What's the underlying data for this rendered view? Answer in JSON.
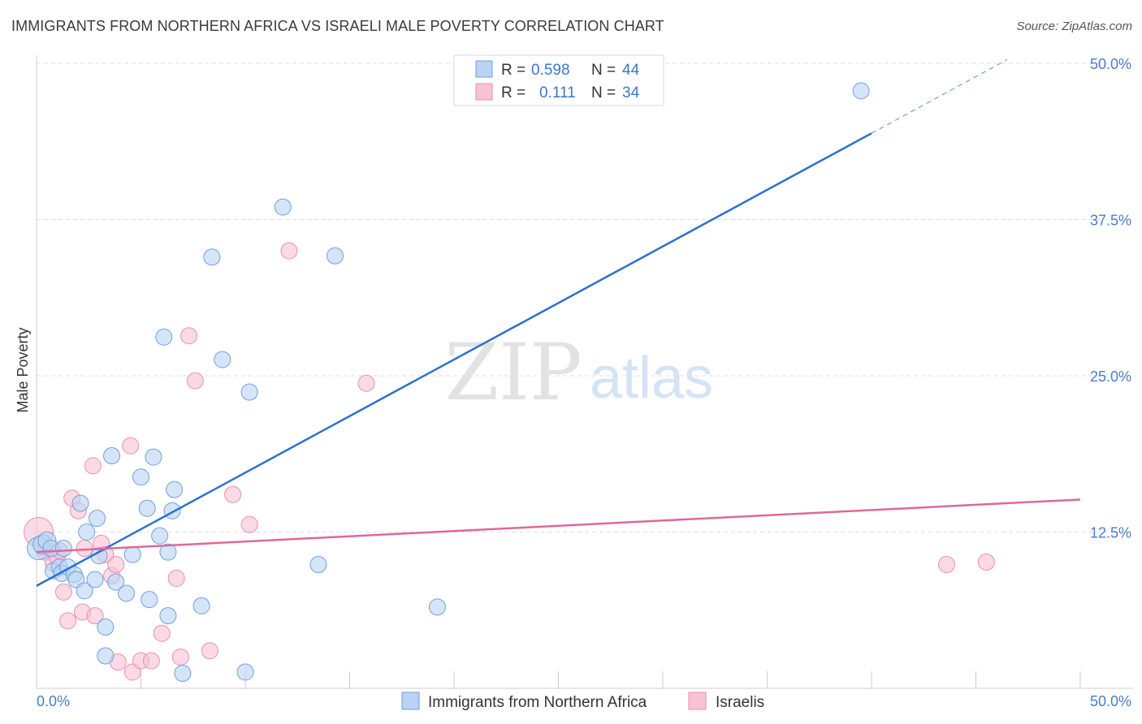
{
  "header": {
    "title": "IMMIGRANTS FROM NORTHERN AFRICA VS ISRAELI MALE POVERTY CORRELATION CHART",
    "source": "Source: ZipAtlas.com"
  },
  "watermark": {
    "zip": "ZIP",
    "atlas": "atlas"
  },
  "legend": {
    "r_label": "R =",
    "n_label": "N =",
    "rows": [
      {
        "r": "0.598",
        "n": "44"
      },
      {
        "r": "0.111",
        "n": "34"
      }
    ]
  },
  "chart_data": {
    "type": "scatter",
    "title": "IMMIGRANTS FROM NORTHERN AFRICA VS ISRAELI MALE POVERTY CORRELATION CHART",
    "xlabel": "",
    "ylabel": "Male Poverty",
    "xlim": [
      0,
      50
    ],
    "ylim": [
      0,
      50
    ],
    "x_tick_labels": [
      "0.0%",
      "50.0%"
    ],
    "y_ticks": [
      12.5,
      25.0,
      37.5,
      50.0
    ],
    "y_tick_labels": [
      "12.5%",
      "25.0%",
      "37.5%",
      "50.0%"
    ],
    "grid": true,
    "legend_position": "top-center",
    "colors": {
      "series1_fill": "#b9d3f5",
      "series1_stroke": "#6f9fde",
      "series1_line": "#2a72cf",
      "series2_fill": "#f8c2d4",
      "series2_stroke": "#e98fae",
      "series2_line": "#e0679a",
      "tick": "#4a7ec8",
      "grid": "#dedede"
    },
    "series": [
      {
        "name": "Immigrants from Northern Africa",
        "r": 0.598,
        "n": 44,
        "trend": {
          "x": [
            0,
            40
          ],
          "y": [
            8.2,
            44.4
          ],
          "dashed_to": [
            46.5,
            50.3
          ]
        },
        "points": [
          [
            0.1,
            11.2,
            14
          ],
          [
            0.3,
            11.5,
            12
          ],
          [
            0.5,
            11.8,
            11
          ],
          [
            0.7,
            11.2,
            10
          ],
          [
            0.8,
            9.4,
            10
          ],
          [
            1.1,
            9.7,
            10
          ],
          [
            1.3,
            11.2,
            10
          ],
          [
            1.2,
            9.2,
            10
          ],
          [
            1.5,
            9.7,
            10
          ],
          [
            1.8,
            9.1,
            10
          ],
          [
            1.9,
            8.7,
            10
          ],
          [
            2.1,
            14.8,
            10
          ],
          [
            2.3,
            7.8,
            10
          ],
          [
            2.4,
            12.5,
            10
          ],
          [
            2.8,
            8.7,
            10
          ],
          [
            2.9,
            13.6,
            10
          ],
          [
            3.0,
            10.6,
            10
          ],
          [
            3.3,
            4.9,
            10
          ],
          [
            3.6,
            18.6,
            10
          ],
          [
            3.8,
            8.5,
            10
          ],
          [
            4.3,
            7.6,
            10
          ],
          [
            4.6,
            10.7,
            10
          ],
          [
            3.3,
            2.6,
            10
          ],
          [
            5.0,
            16.9,
            10
          ],
          [
            5.3,
            14.4,
            10
          ],
          [
            5.6,
            18.5,
            10
          ],
          [
            5.9,
            12.2,
            10
          ],
          [
            6.1,
            28.1,
            10
          ],
          [
            6.3,
            10.9,
            10
          ],
          [
            6.5,
            14.2,
            10
          ],
          [
            6.6,
            15.9,
            10
          ],
          [
            6.3,
            5.8,
            10
          ],
          [
            7.0,
            1.2,
            10
          ],
          [
            7.9,
            6.6,
            10
          ],
          [
            8.4,
            34.5,
            10
          ],
          [
            8.9,
            26.3,
            10
          ],
          [
            10.2,
            23.7,
            10
          ],
          [
            10.0,
            1.3,
            10
          ],
          [
            11.8,
            38.5,
            10
          ],
          [
            13.5,
            9.9,
            10
          ],
          [
            14.3,
            34.6,
            10
          ],
          [
            19.2,
            6.5,
            10
          ],
          [
            39.5,
            47.8,
            10
          ],
          [
            5.4,
            7.1,
            10
          ]
        ]
      },
      {
        "name": "Israelis",
        "r": 0.111,
        "n": 34,
        "trend": {
          "x": [
            0,
            50
          ],
          "y": [
            10.9,
            15.1
          ]
        },
        "points": [
          [
            0.1,
            12.5,
            18
          ],
          [
            0.4,
            10.9,
            10
          ],
          [
            0.8,
            10.0,
            10
          ],
          [
            1.0,
            10.5,
            10
          ],
          [
            1.1,
            11.0,
            10
          ],
          [
            1.3,
            7.7,
            10
          ],
          [
            1.5,
            5.4,
            10
          ],
          [
            1.7,
            15.2,
            10
          ],
          [
            2.0,
            14.2,
            10
          ],
          [
            2.2,
            6.1,
            10
          ],
          [
            2.3,
            11.2,
            10
          ],
          [
            2.7,
            17.8,
            10
          ],
          [
            2.8,
            5.8,
            10
          ],
          [
            3.1,
            11.6,
            10
          ],
          [
            3.3,
            10.7,
            10
          ],
          [
            3.6,
            9.0,
            10
          ],
          [
            3.8,
            9.9,
            10
          ],
          [
            3.9,
            2.1,
            10
          ],
          [
            4.5,
            19.4,
            10
          ],
          [
            4.6,
            1.3,
            10
          ],
          [
            5.0,
            2.2,
            10
          ],
          [
            5.5,
            2.2,
            10
          ],
          [
            6.0,
            4.4,
            10
          ],
          [
            6.7,
            8.8,
            10
          ],
          [
            6.9,
            2.5,
            10
          ],
          [
            7.3,
            28.2,
            10
          ],
          [
            7.6,
            24.6,
            10
          ],
          [
            8.3,
            3.0,
            10
          ],
          [
            9.4,
            15.5,
            10
          ],
          [
            10.2,
            13.1,
            10
          ],
          [
            12.1,
            35.0,
            10
          ],
          [
            15.8,
            24.4,
            10
          ],
          [
            43.6,
            9.9,
            10
          ],
          [
            45.5,
            10.1,
            10
          ]
        ]
      }
    ]
  }
}
